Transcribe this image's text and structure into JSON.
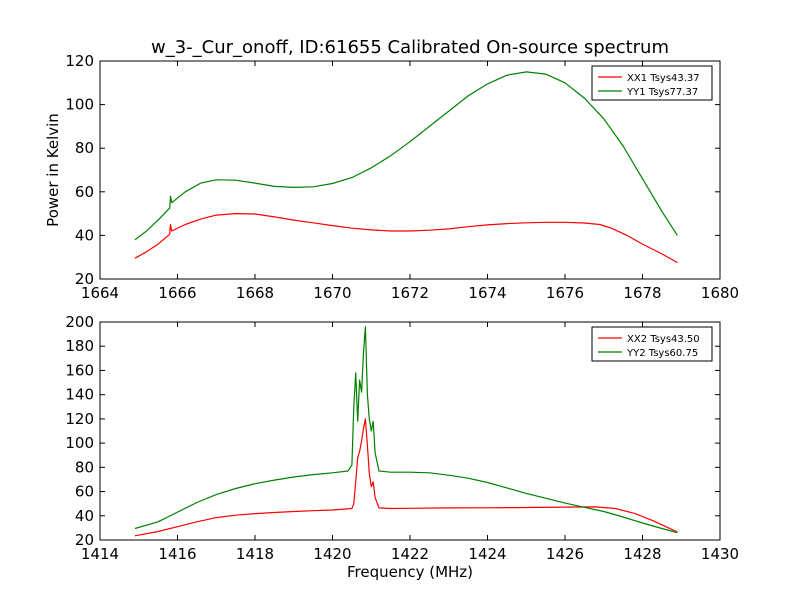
{
  "figure": {
    "title": "w_3-_Cur_onoff, ID:61655 Calibrated On-source spectrum",
    "shared_xlabel": "Frequency (MHz)"
  },
  "chart_data": [
    {
      "type": "line",
      "ylabel": "Power in Kelvin",
      "xlabel": "",
      "xlim": [
        1664,
        1680
      ],
      "ylim": [
        20,
        120
      ],
      "xticks": [
        1664,
        1666,
        1668,
        1670,
        1672,
        1674,
        1676,
        1678,
        1680
      ],
      "yticks": [
        20,
        40,
        60,
        80,
        100,
        120
      ],
      "legend_position": "top-right",
      "grid": false,
      "series": [
        {
          "name": "XX1 Tsys43.37",
          "color": "#ff0000",
          "points": [
            [
              1664.9,
              29.5
            ],
            [
              1665.2,
              32.5
            ],
            [
              1665.5,
              36
            ],
            [
              1665.8,
              40.5
            ],
            [
              1665.82,
              45
            ],
            [
              1665.85,
              42
            ],
            [
              1666.2,
              45
            ],
            [
              1666.6,
              47.5
            ],
            [
              1667.0,
              49.3
            ],
            [
              1667.5,
              50
            ],
            [
              1668.0,
              49.8
            ],
            [
              1668.5,
              48.5
            ],
            [
              1669.0,
              47
            ],
            [
              1669.5,
              45.8
            ],
            [
              1670.0,
              44.5
            ],
            [
              1670.5,
              43.3
            ],
            [
              1671.0,
              42.5
            ],
            [
              1671.5,
              42
            ],
            [
              1672.0,
              42
            ],
            [
              1672.5,
              42.4
            ],
            [
              1673.0,
              43
            ],
            [
              1673.5,
              44
            ],
            [
              1674.0,
              44.8
            ],
            [
              1674.5,
              45.4
            ],
            [
              1675.0,
              45.8
            ],
            [
              1675.5,
              46
            ],
            [
              1676.0,
              46
            ],
            [
              1676.5,
              45.7
            ],
            [
              1676.9,
              45
            ],
            [
              1677.2,
              43.3
            ],
            [
              1677.6,
              40
            ],
            [
              1678.0,
              36
            ],
            [
              1678.5,
              31.5
            ],
            [
              1678.9,
              27.5
            ]
          ]
        },
        {
          "name": "YY1 Tsys77.37",
          "color": "#008000",
          "points": [
            [
              1664.9,
              38
            ],
            [
              1665.2,
              42
            ],
            [
              1665.5,
              47
            ],
            [
              1665.8,
              52.5
            ],
            [
              1665.82,
              58
            ],
            [
              1665.85,
              55
            ],
            [
              1666.2,
              60
            ],
            [
              1666.6,
              64
            ],
            [
              1667.0,
              65.5
            ],
            [
              1667.5,
              65.3
            ],
            [
              1668.0,
              64
            ],
            [
              1668.5,
              62.5
            ],
            [
              1669.0,
              62
            ],
            [
              1669.5,
              62.3
            ],
            [
              1670.0,
              63.8
            ],
            [
              1670.5,
              66.5
            ],
            [
              1671.0,
              71
            ],
            [
              1671.5,
              76.5
            ],
            [
              1672.0,
              83
            ],
            [
              1672.5,
              90
            ],
            [
              1673.0,
              97
            ],
            [
              1673.5,
              104
            ],
            [
              1674.0,
              109.5
            ],
            [
              1674.5,
              113.5
            ],
            [
              1675.0,
              115
            ],
            [
              1675.5,
              114
            ],
            [
              1676.0,
              110
            ],
            [
              1676.5,
              103
            ],
            [
              1677.0,
              93.5
            ],
            [
              1677.5,
              81
            ],
            [
              1678.0,
              66
            ],
            [
              1678.5,
              51
            ],
            [
              1678.9,
              40
            ]
          ]
        }
      ]
    },
    {
      "type": "line",
      "ylabel": "",
      "xlabel": "Frequency (MHz)",
      "xlim": [
        1414,
        1430
      ],
      "ylim": [
        20,
        200
      ],
      "xticks": [
        1414,
        1416,
        1418,
        1420,
        1422,
        1424,
        1426,
        1428,
        1430
      ],
      "yticks": [
        20,
        40,
        60,
        80,
        100,
        120,
        140,
        160,
        180,
        200
      ],
      "legend_position": "top-right",
      "grid": false,
      "series": [
        {
          "name": "XX2 Tsys43.50",
          "color": "#ff0000",
          "points": [
            [
              1414.9,
              23.5
            ],
            [
              1415.5,
              27
            ],
            [
              1416.0,
              31
            ],
            [
              1416.5,
              35
            ],
            [
              1417.0,
              38.5
            ],
            [
              1417.5,
              40.5
            ],
            [
              1418.0,
              41.8
            ],
            [
              1418.5,
              42.7
            ],
            [
              1419.0,
              43.5
            ],
            [
              1419.5,
              44.2
            ],
            [
              1420.0,
              44.8
            ],
            [
              1420.5,
              46
            ],
            [
              1420.55,
              50
            ],
            [
              1420.6,
              68
            ],
            [
              1420.65,
              88
            ],
            [
              1420.7,
              93
            ],
            [
              1420.75,
              102
            ],
            [
              1420.8,
              112
            ],
            [
              1420.85,
              120
            ],
            [
              1420.9,
              98
            ],
            [
              1420.95,
              75
            ],
            [
              1421.0,
              64
            ],
            [
              1421.05,
              68
            ],
            [
              1421.1,
              55
            ],
            [
              1421.2,
              46.5
            ],
            [
              1421.5,
              46
            ],
            [
              1422.0,
              46.2
            ],
            [
              1423.0,
              46.5
            ],
            [
              1424.0,
              46.6
            ],
            [
              1425.0,
              46.8
            ],
            [
              1426.0,
              47.2
            ],
            [
              1426.8,
              47.3
            ],
            [
              1427.3,
              46
            ],
            [
              1427.8,
              42
            ],
            [
              1428.3,
              35.5
            ],
            [
              1428.9,
              26.5
            ]
          ]
        },
        {
          "name": "YY2 Tsys60.75",
          "color": "#008000",
          "points": [
            [
              1414.9,
              29.5
            ],
            [
              1415.5,
              35
            ],
            [
              1416.0,
              43
            ],
            [
              1416.5,
              51
            ],
            [
              1417.0,
              57.5
            ],
            [
              1417.5,
              62.5
            ],
            [
              1418.0,
              66.5
            ],
            [
              1418.5,
              69.5
            ],
            [
              1419.0,
              72
            ],
            [
              1419.5,
              74
            ],
            [
              1420.0,
              75.5
            ],
            [
              1420.4,
              77
            ],
            [
              1420.5,
              82
            ],
            [
              1420.55,
              130
            ],
            [
              1420.6,
              158
            ],
            [
              1420.65,
              118
            ],
            [
              1420.7,
              152
            ],
            [
              1420.75,
              142
            ],
            [
              1420.8,
              175
            ],
            [
              1420.85,
              196
            ],
            [
              1420.9,
              140
            ],
            [
              1420.95,
              120
            ],
            [
              1421.0,
              110
            ],
            [
              1421.05,
              118
            ],
            [
              1421.1,
              92
            ],
            [
              1421.2,
              77
            ],
            [
              1421.5,
              76
            ],
            [
              1422.0,
              76
            ],
            [
              1422.5,
              75.5
            ],
            [
              1423.0,
              73.5
            ],
            [
              1423.5,
              71
            ],
            [
              1424.0,
              67.5
            ],
            [
              1424.5,
              63
            ],
            [
              1425.0,
              58.5
            ],
            [
              1425.5,
              54.5
            ],
            [
              1426.0,
              50.5
            ],
            [
              1426.5,
              47
            ],
            [
              1427.0,
              43.5
            ],
            [
              1427.5,
              39
            ],
            [
              1428.0,
              34
            ],
            [
              1428.5,
              29.5
            ],
            [
              1428.9,
              26
            ]
          ]
        }
      ]
    }
  ]
}
